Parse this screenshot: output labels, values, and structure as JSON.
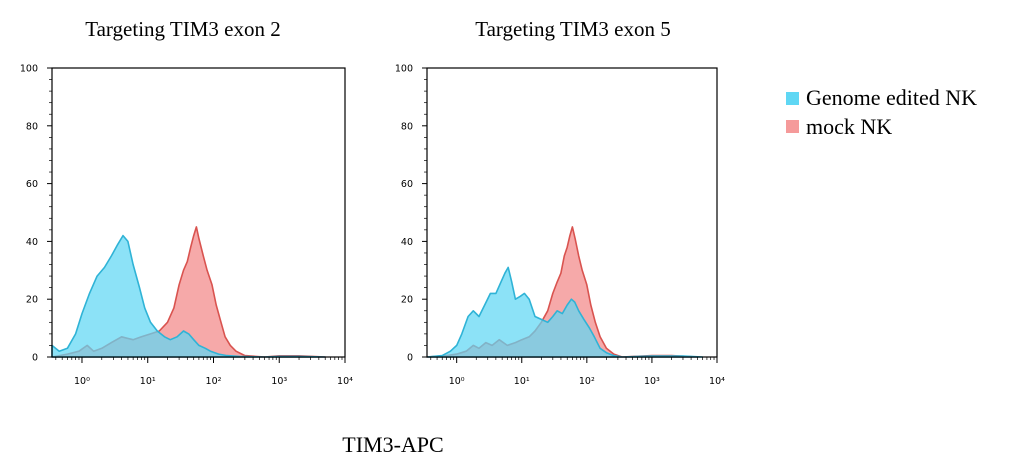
{
  "xlabel": "TIM3-APC",
  "legend": [
    {
      "label": "Genome edited NK",
      "color": "#5fd7f4"
    },
    {
      "label": "mock NK",
      "color": "#f59a9a"
    }
  ],
  "chart_data": [
    {
      "type": "area",
      "title": "Targeting TIM3 exon 2",
      "xlabel": "TIM3-APC",
      "ylabel": "",
      "x_scale": "log",
      "xlim": [
        0.35,
        10000
      ],
      "ylim": [
        0,
        100
      ],
      "y_ticks": [
        "0",
        "20",
        "40",
        "60",
        "80",
        "100"
      ],
      "x_ticks": [
        "10⁰",
        "10¹",
        "10²",
        "10³",
        "10⁴"
      ],
      "x_tick_values": [
        1,
        10,
        100,
        1000,
        10000
      ],
      "series": [
        {
          "name": "Genome edited NK",
          "color": "#5fd7f4",
          "stroke": "#2fb3d6",
          "points": [
            [
              0.35,
              4
            ],
            [
              0.45,
              2
            ],
            [
              0.6,
              3
            ],
            [
              0.8,
              8
            ],
            [
              1.0,
              15
            ],
            [
              1.3,
              22
            ],
            [
              1.7,
              28
            ],
            [
              2.2,
              31
            ],
            [
              2.8,
              35
            ],
            [
              3.5,
              39
            ],
            [
              4.2,
              42
            ],
            [
              5.0,
              40
            ],
            [
              6.0,
              32
            ],
            [
              7.5,
              24
            ],
            [
              9,
              17
            ],
            [
              11,
              12
            ],
            [
              14,
              9
            ],
            [
              18,
              7
            ],
            [
              22,
              6
            ],
            [
              28,
              7
            ],
            [
              35,
              9
            ],
            [
              42,
              8
            ],
            [
              50,
              6
            ],
            [
              60,
              4
            ],
            [
              75,
              3
            ],
            [
              90,
              2
            ],
            [
              120,
              1
            ],
            [
              160,
              0.5
            ],
            [
              250,
              0.2
            ],
            [
              600,
              0
            ],
            [
              1000,
              0.2
            ],
            [
              2000,
              0.2
            ],
            [
              5000,
              0
            ]
          ]
        },
        {
          "name": "mock NK",
          "color": "#f59a9a",
          "stroke": "#d9534f",
          "points": [
            [
              0.35,
              0
            ],
            [
              0.6,
              1
            ],
            [
              0.9,
              2
            ],
            [
              1.2,
              4
            ],
            [
              1.5,
              2
            ],
            [
              2.0,
              3
            ],
            [
              2.8,
              5
            ],
            [
              4,
              7
            ],
            [
              6,
              6
            ],
            [
              8,
              7
            ],
            [
              11,
              8
            ],
            [
              15,
              9
            ],
            [
              20,
              12
            ],
            [
              25,
              17
            ],
            [
              30,
              25
            ],
            [
              35,
              30
            ],
            [
              40,
              33
            ],
            [
              45,
              38
            ],
            [
              50,
              42
            ],
            [
              55,
              45
            ],
            [
              60,
              41
            ],
            [
              70,
              35
            ],
            [
              80,
              30
            ],
            [
              95,
              25
            ],
            [
              110,
              18
            ],
            [
              130,
              12
            ],
            [
              150,
              7
            ],
            [
              180,
              4
            ],
            [
              220,
              2
            ],
            [
              300,
              0.5
            ],
            [
              600,
              0
            ],
            [
              1000,
              0.4
            ],
            [
              2000,
              0.4
            ],
            [
              5000,
              0
            ]
          ]
        }
      ]
    },
    {
      "type": "area",
      "title": "Targeting TIM3 exon 5",
      "xlabel": "TIM3-APC",
      "ylabel": "",
      "x_scale": "log",
      "xlim": [
        0.35,
        10000
      ],
      "ylim": [
        0,
        100
      ],
      "y_ticks": [
        "0",
        "20",
        "40",
        "60",
        "80",
        "100"
      ],
      "x_ticks": [
        "10⁰",
        "10¹",
        "10²",
        "10³",
        "10⁴"
      ],
      "x_tick_values": [
        1,
        10,
        100,
        1000,
        10000
      ],
      "series": [
        {
          "name": "Genome edited NK",
          "color": "#5fd7f4",
          "stroke": "#2fb3d6",
          "points": [
            [
              0.35,
              0
            ],
            [
              0.6,
              0.5
            ],
            [
              0.8,
              2
            ],
            [
              1.0,
              4
            ],
            [
              1.2,
              8
            ],
            [
              1.5,
              14
            ],
            [
              1.8,
              16
            ],
            [
              2.2,
              14
            ],
            [
              2.7,
              18
            ],
            [
              3.3,
              22
            ],
            [
              4.0,
              22
            ],
            [
              4.8,
              26
            ],
            [
              5.5,
              29
            ],
            [
              6.2,
              31
            ],
            [
              7.0,
              26
            ],
            [
              8.0,
              20
            ],
            [
              9.5,
              21
            ],
            [
              11,
              22
            ],
            [
              13,
              20
            ],
            [
              16,
              14
            ],
            [
              20,
              13
            ],
            [
              25,
              12
            ],
            [
              30,
              14
            ],
            [
              35,
              16
            ],
            [
              42,
              15
            ],
            [
              50,
              18
            ],
            [
              58,
              20
            ],
            [
              65,
              19
            ],
            [
              75,
              16
            ],
            [
              90,
              13
            ],
            [
              110,
              10
            ],
            [
              130,
              7
            ],
            [
              160,
              3
            ],
            [
              200,
              1.5
            ],
            [
              260,
              0.5
            ],
            [
              350,
              0
            ],
            [
              1000,
              0.3
            ],
            [
              3000,
              0.3
            ],
            [
              6000,
              0
            ]
          ]
        },
        {
          "name": "mock NK",
          "color": "#f59a9a",
          "stroke": "#d9534f",
          "points": [
            [
              0.35,
              0
            ],
            [
              0.7,
              0.5
            ],
            [
              1.0,
              1
            ],
            [
              1.4,
              2
            ],
            [
              1.8,
              4
            ],
            [
              2.2,
              3
            ],
            [
              2.8,
              5
            ],
            [
              3.5,
              4
            ],
            [
              4.5,
              6
            ],
            [
              6,
              4
            ],
            [
              8,
              5
            ],
            [
              10,
              6
            ],
            [
              13,
              7
            ],
            [
              16,
              9
            ],
            [
              20,
              12
            ],
            [
              25,
              16
            ],
            [
              30,
              22
            ],
            [
              35,
              26
            ],
            [
              40,
              29
            ],
            [
              45,
              35
            ],
            [
              50,
              38
            ],
            [
              55,
              42
            ],
            [
              60,
              45
            ],
            [
              66,
              41
            ],
            [
              75,
              35
            ],
            [
              85,
              30
            ],
            [
              100,
              25
            ],
            [
              115,
              18
            ],
            [
              135,
              12
            ],
            [
              160,
              7
            ],
            [
              200,
              3
            ],
            [
              260,
              1
            ],
            [
              350,
              0
            ],
            [
              1000,
              0.5
            ],
            [
              2000,
              0.5
            ],
            [
              5000,
              0
            ]
          ]
        }
      ]
    }
  ]
}
